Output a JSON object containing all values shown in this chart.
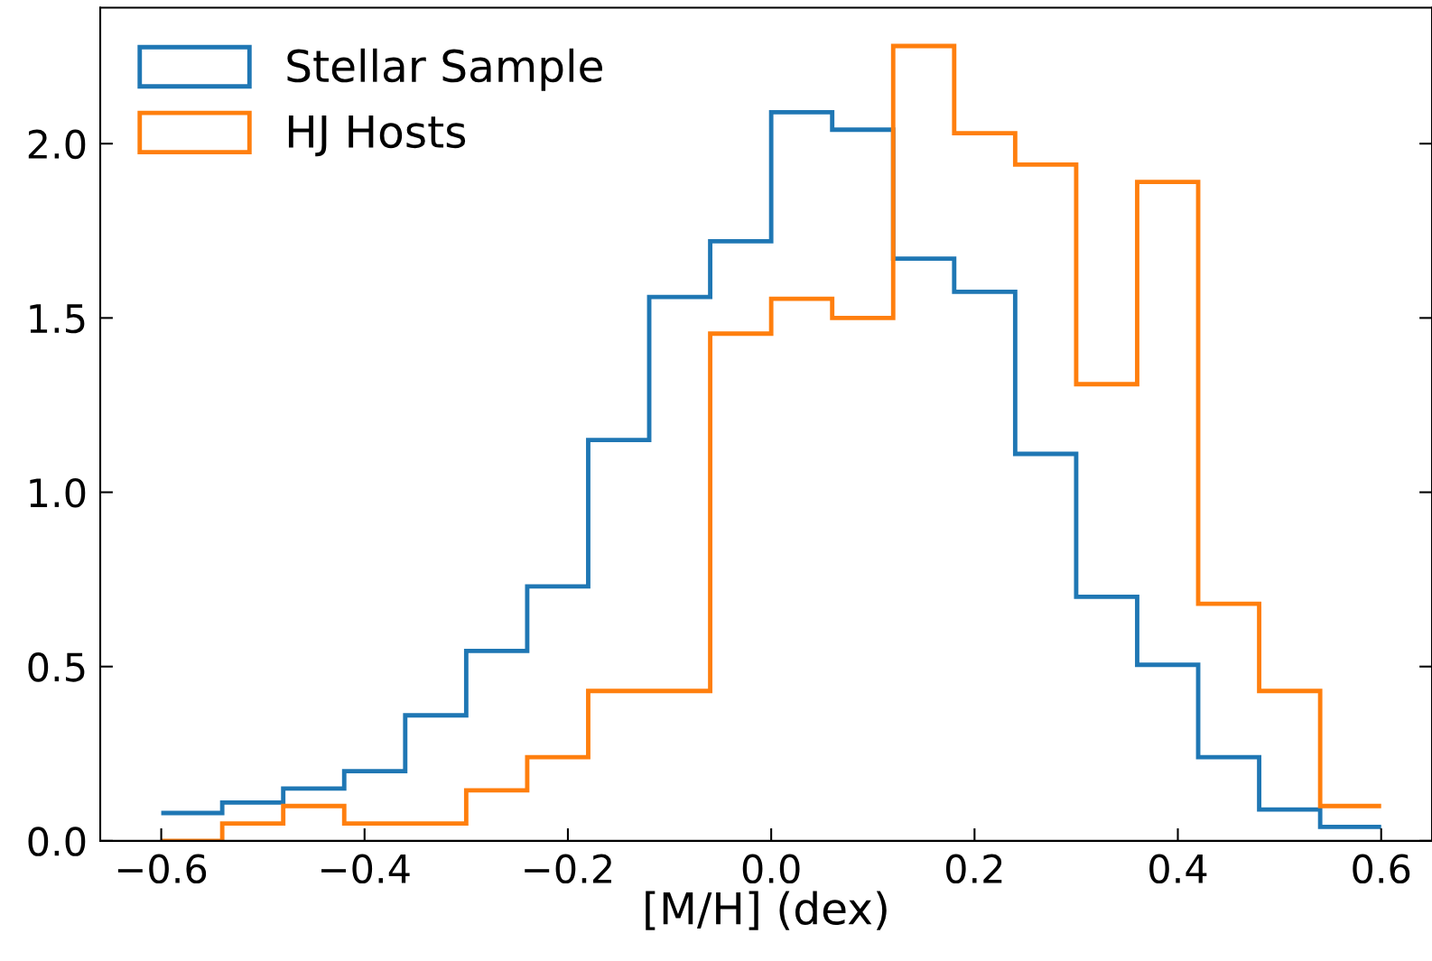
{
  "chart_data": {
    "type": "histogram",
    "xlabel": "[M/H] (dex)",
    "bins": [
      -0.6,
      -0.54,
      -0.48,
      -0.42,
      -0.36,
      -0.3,
      -0.24,
      -0.18,
      -0.12,
      -0.06,
      0.0,
      0.06,
      0.12,
      0.18,
      0.24,
      0.3,
      0.36,
      0.42,
      0.48,
      0.54,
      0.6
    ],
    "series": [
      {
        "name": "Stellar Sample",
        "color": "#1f77b4",
        "values": [
          0.08,
          0.11,
          0.15,
          0.2,
          0.36,
          0.545,
          0.73,
          1.15,
          1.56,
          1.72,
          2.09,
          2.04,
          1.67,
          1.575,
          1.11,
          0.7,
          0.505,
          0.24,
          0.09,
          0.04
        ]
      },
      {
        "name": "HJ Hosts",
        "color": "#ff7f0e",
        "values": [
          0.0,
          0.05,
          0.1,
          0.05,
          0.05,
          0.145,
          0.24,
          0.43,
          0.43,
          1.455,
          1.555,
          1.5,
          2.28,
          2.03,
          1.94,
          1.31,
          1.89,
          0.68,
          0.43,
          0.1
        ]
      }
    ],
    "xlim": [
      -0.66,
      0.65
    ],
    "ylim": [
      0,
      2.39
    ],
    "xticks": [
      {
        "value": -0.6,
        "label": "−0.6"
      },
      {
        "value": -0.4,
        "label": "−0.4"
      },
      {
        "value": -0.2,
        "label": "−0.2"
      },
      {
        "value": 0.0,
        "label": "0.0"
      },
      0.2,
      0.4,
      0.6
    ],
    "yticks": [
      {
        "value": 0.0,
        "label": "0.0"
      },
      0.5,
      {
        "value": 1.0,
        "label": "1.0"
      },
      1.5,
      {
        "value": 2.0,
        "label": "2.0"
      }
    ],
    "legend": "top left",
    "grid": false
  }
}
